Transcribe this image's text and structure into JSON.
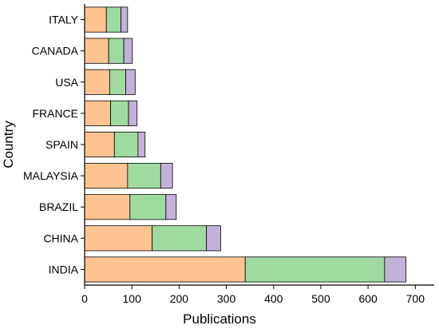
{
  "chart_data": {
    "type": "bar",
    "orientation": "horizontal",
    "stacked": true,
    "categories": [
      "INDIA",
      "CHINA",
      "BRAZIL",
      "MALAYSIA",
      "SPAIN",
      "FRANCE",
      "USA",
      "CANADA",
      "ITALY"
    ],
    "series": [
      {
        "values": [
          340,
          143,
          96,
          91,
          63,
          55,
          53,
          51,
          46
        ],
        "color": "#FDC391"
      },
      {
        "values": [
          295,
          115,
          76,
          70,
          50,
          38,
          34,
          32,
          31
        ],
        "color": "#9FDBA1"
      },
      {
        "values": [
          45,
          30,
          22,
          25,
          15,
          18,
          20,
          18,
          14
        ],
        "color": "#C2B2D9"
      }
    ],
    "title": "",
    "xlabel": "Publications",
    "ylabel": "Country",
    "xlim": [
      0,
      740
    ],
    "xticks": [
      0,
      100,
      200,
      300,
      400,
      500,
      600,
      700
    ],
    "grid": false,
    "legend": "none"
  }
}
